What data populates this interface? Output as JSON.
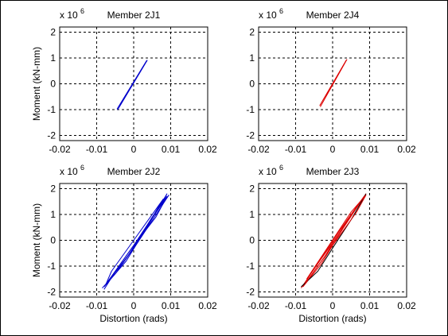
{
  "chart_data": [
    {
      "type": "line",
      "title": "Member 2J1",
      "xlabel": "",
      "ylabel": "Moment (kN-mm)",
      "y_multiplier": "x 10",
      "y_multiplier_exp": "6",
      "xlim": [
        -0.02,
        0.02
      ],
      "ylim": [
        -2.2,
        2.2
      ],
      "xticks": [
        -0.02,
        -0.01,
        0,
        0.01,
        0.02
      ],
      "xtick_labels": [
        "-0.02",
        "-0.01",
        "0",
        "0.01",
        "0.02"
      ],
      "yticks": [
        -2,
        -1,
        0,
        1,
        2
      ],
      "ytick_labels": [
        "-2",
        "-1",
        "0",
        "1",
        "2"
      ],
      "grid": true,
      "series": [
        {
          "color": "#0000cc",
          "x": [
            -0.0045,
            0.0035,
            -0.0043,
            0.0037
          ],
          "y": [
            -0.98,
            0.9,
            -1.0,
            0.92
          ]
        }
      ]
    },
    {
      "type": "line",
      "title": "Member 2J4",
      "xlabel": "",
      "ylabel": "",
      "y_multiplier": "x 10",
      "y_multiplier_exp": "6",
      "xlim": [
        -0.02,
        0.02
      ],
      "ylim": [
        -2.2,
        2.2
      ],
      "xticks": [
        -0.02,
        -0.01,
        0,
        0.01,
        0.02
      ],
      "xtick_labels": [
        "-0.02",
        "-0.01",
        "0",
        "0.01",
        "0.02"
      ],
      "yticks": [
        -2,
        -1,
        0,
        1,
        2
      ],
      "ytick_labels": [
        "-2",
        "-1",
        "0",
        "1",
        "2"
      ],
      "grid": true,
      "series": [
        {
          "color": "#dd0000",
          "x": [
            -0.0035,
            0.0037,
            -0.0033,
            0.0039
          ],
          "y": [
            -0.85,
            0.92,
            -0.88,
            0.95
          ]
        }
      ]
    },
    {
      "type": "line",
      "title": "Member 2J2",
      "xlabel": "Distortion (rads)",
      "ylabel": "Moment (kN-mm)",
      "y_multiplier": "x 10",
      "y_multiplier_exp": "6",
      "xlim": [
        -0.02,
        0.02
      ],
      "ylim": [
        -2.2,
        2.2
      ],
      "xticks": [
        -0.02,
        -0.01,
        0,
        0.01,
        0.02
      ],
      "xtick_labels": [
        "-0.02",
        "-0.01",
        "0",
        "0.01",
        "0.02"
      ],
      "yticks": [
        -2,
        -1,
        0,
        1,
        2
      ],
      "ytick_labels": [
        "-2",
        "-1",
        "0",
        "1",
        "2"
      ],
      "grid": true,
      "series": [
        {
          "color": "#0000cc",
          "x": [
            -0.008,
            -0.002,
            0.004,
            0.009,
            0.008,
            0.002,
            -0.004,
            -0.008
          ],
          "y": [
            -1.8,
            -0.8,
            0.6,
            1.8,
            1.5,
            0.2,
            -1.0,
            -1.9
          ]
        },
        {
          "color": "#0000cc",
          "x": [
            -0.007,
            -0.001,
            0.005,
            0.0095,
            0.007,
            0.001,
            -0.005,
            -0.0085
          ],
          "y": [
            -1.6,
            -0.5,
            0.9,
            1.75,
            1.2,
            -0.1,
            -1.3,
            -1.85
          ]
        },
        {
          "color": "#0000cc",
          "x": [
            -0.0065,
            -0.002,
            0.003,
            0.008,
            0.0065,
            0.0,
            -0.006,
            -0.0075
          ],
          "y": [
            -1.5,
            -0.7,
            0.4,
            1.6,
            1.3,
            0.0,
            -1.2,
            -1.7
          ]
        },
        {
          "color": "#0000cc",
          "x": [
            -0.005,
            0.0,
            0.006,
            0.009,
            0.006,
            -0.001,
            -0.007
          ],
          "y": [
            -1.2,
            -0.2,
            1.1,
            1.7,
            0.9,
            -0.4,
            -1.6
          ]
        }
      ]
    },
    {
      "type": "line",
      "title": "Member 2J3",
      "xlabel": "Distortion (rads)",
      "ylabel": "",
      "y_multiplier": "x 10",
      "y_multiplier_exp": "6",
      "xlim": [
        -0.02,
        0.02
      ],
      "ylim": [
        -2.2,
        2.2
      ],
      "xticks": [
        -0.02,
        -0.01,
        0,
        0.01,
        0.02
      ],
      "xtick_labels": [
        "-0.02",
        "-0.01",
        "0",
        "0.01",
        "0.02"
      ],
      "yticks": [
        -2,
        -1,
        0,
        1,
        2
      ],
      "ytick_labels": [
        "-2",
        "-1",
        "0",
        "1",
        "2"
      ],
      "grid": true,
      "series": [
        {
          "color": "#dd0000",
          "x": [
            -0.008,
            -0.003,
            0.003,
            0.009,
            0.008,
            0.002,
            -0.004,
            -0.0085
          ],
          "y": [
            -1.8,
            -0.9,
            0.5,
            1.8,
            1.6,
            0.4,
            -0.9,
            -1.85
          ]
        },
        {
          "color": "#dd0000",
          "x": [
            -0.0075,
            -0.002,
            0.004,
            0.0085,
            0.007,
            0.0,
            -0.006,
            -0.008
          ],
          "y": [
            -1.7,
            -0.6,
            0.8,
            1.7,
            1.4,
            -0.1,
            -1.3,
            -1.8
          ]
        },
        {
          "color": "#000000",
          "x": [
            -0.0085,
            -0.004,
            0.0,
            0.005,
            0.009
          ],
          "y": [
            -1.8,
            -1.2,
            -0.3,
            0.8,
            1.8
          ]
        },
        {
          "color": "#dd0000",
          "x": [
            -0.007,
            -0.001,
            0.005,
            0.009,
            0.0065,
            -0.001,
            -0.0075
          ],
          "y": [
            -1.5,
            -0.2,
            1.1,
            1.75,
            1.1,
            -0.4,
            -1.7
          ]
        }
      ]
    }
  ]
}
